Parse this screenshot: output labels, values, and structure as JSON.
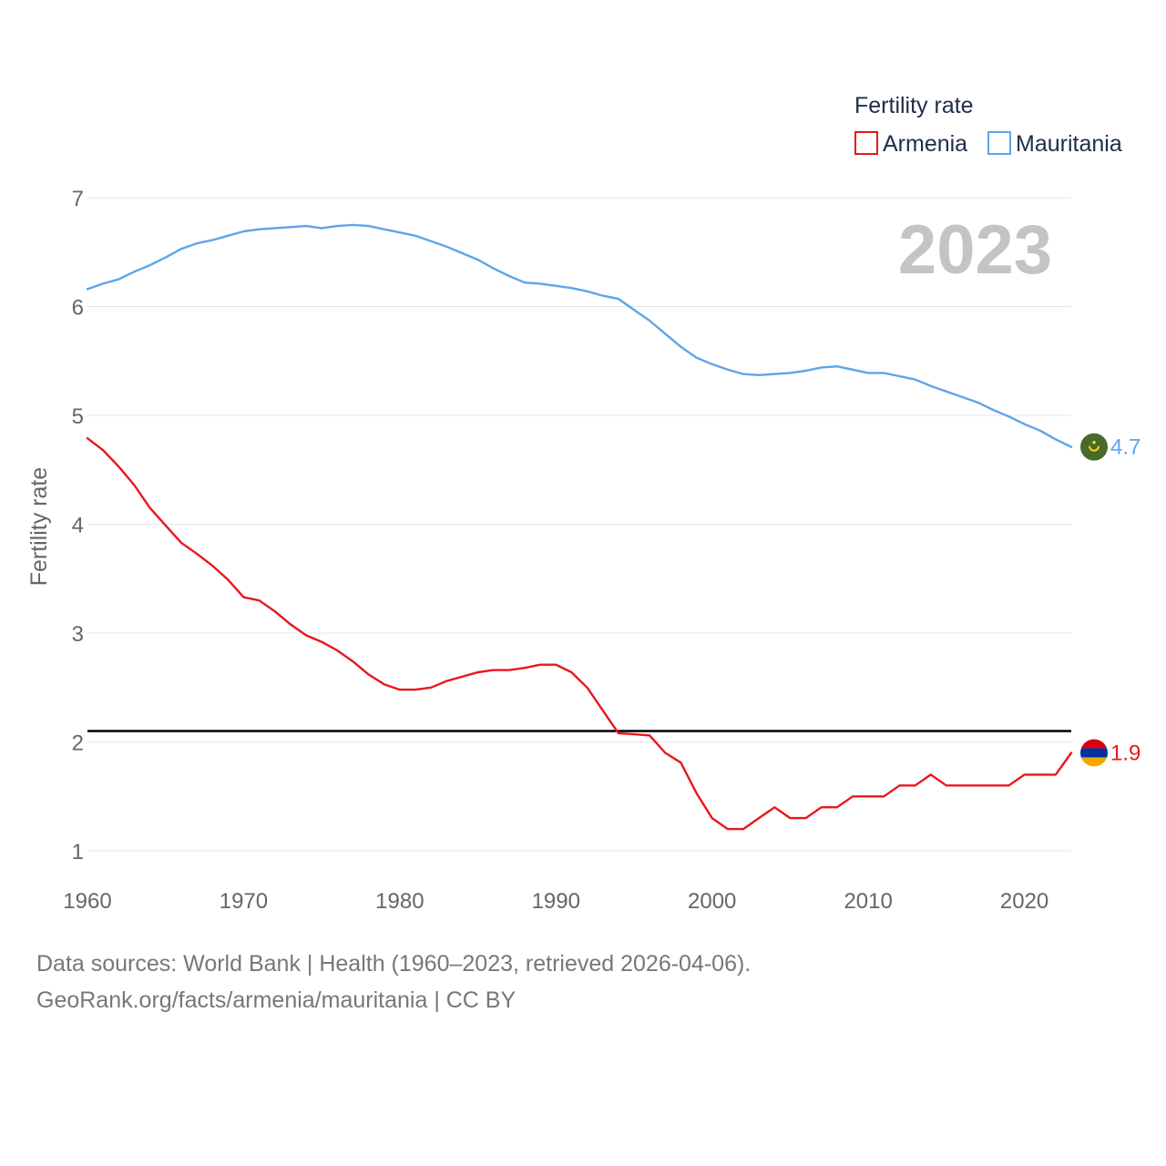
{
  "chart_data": {
    "type": "line",
    "ylabel": "Fertility rate",
    "xlabel": "",
    "xlim": [
      1960,
      2023
    ],
    "ylim": [
      0.85,
      7.15
    ],
    "y_ticks": [
      1,
      2,
      3,
      4,
      5,
      6,
      7
    ],
    "x_ticks": [
      1960,
      1970,
      1980,
      1990,
      2000,
      2010,
      2020
    ],
    "reference_line": 2.1,
    "current_year": "2023",
    "legend_title": "Fertility rate",
    "series": [
      {
        "name": "Armenia",
        "color": "#e8171b",
        "end_label": "1.9",
        "x": [
          1960,
          1961,
          1962,
          1963,
          1964,
          1965,
          1966,
          1967,
          1968,
          1969,
          1970,
          1971,
          1972,
          1973,
          1974,
          1975,
          1976,
          1977,
          1978,
          1979,
          1980,
          1981,
          1982,
          1983,
          1984,
          1985,
          1986,
          1987,
          1988,
          1989,
          1990,
          1991,
          1992,
          1993,
          1994,
          1995,
          1996,
          1997,
          1998,
          1999,
          2000,
          2001,
          2002,
          2003,
          2004,
          2005,
          2006,
          2007,
          2008,
          2009,
          2010,
          2011,
          2012,
          2013,
          2014,
          2015,
          2016,
          2017,
          2018,
          2019,
          2020,
          2021,
          2022,
          2023
        ],
        "values": [
          4.79,
          4.68,
          4.53,
          4.36,
          4.15,
          3.99,
          3.83,
          3.73,
          3.62,
          3.49,
          3.33,
          3.3,
          3.2,
          3.08,
          2.98,
          2.92,
          2.84,
          2.74,
          2.62,
          2.53,
          2.48,
          2.48,
          2.5,
          2.56,
          2.6,
          2.64,
          2.66,
          2.66,
          2.68,
          2.71,
          2.71,
          2.64,
          2.5,
          2.29,
          2.08,
          2.07,
          2.06,
          1.9,
          1.81,
          1.53,
          1.3,
          1.2,
          1.2,
          1.3,
          1.4,
          1.3,
          1.3,
          1.4,
          1.4,
          1.5,
          1.5,
          1.5,
          1.6,
          1.6,
          1.7,
          1.6,
          1.6,
          1.6,
          1.6,
          1.6,
          1.7,
          1.7,
          1.7,
          1.9
        ]
      },
      {
        "name": "Mauritania",
        "color": "#5da5e8",
        "end_label": "4.7",
        "x": [
          1960,
          1961,
          1962,
          1963,
          1964,
          1965,
          1966,
          1967,
          1968,
          1969,
          1970,
          1971,
          1972,
          1973,
          1974,
          1975,
          1976,
          1977,
          1978,
          1979,
          1980,
          1981,
          1982,
          1983,
          1984,
          1985,
          1986,
          1987,
          1988,
          1989,
          1990,
          1991,
          1992,
          1993,
          1994,
          1995,
          1996,
          1997,
          1998,
          1999,
          2000,
          2001,
          2002,
          2003,
          2004,
          2005,
          2006,
          2007,
          2008,
          2009,
          2010,
          2011,
          2012,
          2013,
          2014,
          2015,
          2016,
          2017,
          2018,
          2019,
          2020,
          2021,
          2022,
          2023
        ],
        "values": [
          6.16,
          6.21,
          6.25,
          6.32,
          6.38,
          6.45,
          6.53,
          6.58,
          6.61,
          6.65,
          6.69,
          6.71,
          6.72,
          6.73,
          6.74,
          6.72,
          6.74,
          6.75,
          6.74,
          6.71,
          6.68,
          6.65,
          6.6,
          6.55,
          6.49,
          6.43,
          6.35,
          6.28,
          6.22,
          6.21,
          6.19,
          6.17,
          6.14,
          6.1,
          6.07,
          5.97,
          5.87,
          5.75,
          5.63,
          5.53,
          5.47,
          5.42,
          5.38,
          5.37,
          5.38,
          5.39,
          5.41,
          5.44,
          5.45,
          5.42,
          5.39,
          5.39,
          5.36,
          5.33,
          5.27,
          5.22,
          5.17,
          5.12,
          5.05,
          4.99,
          4.92,
          4.86,
          4.78,
          4.71
        ]
      }
    ]
  },
  "footer": {
    "line1": "Data sources: World Bank | Health (1960–2023, retrieved 2026-04-06).",
    "line2": "GeoRank.org/facts/armenia/mauritania | CC BY"
  },
  "flags": {
    "armenia": [
      "#d90012",
      "#0033a0",
      "#f2a800"
    ],
    "mauritania": [
      "#4a6a2c",
      "#ffd700",
      "#d01c1f"
    ]
  }
}
